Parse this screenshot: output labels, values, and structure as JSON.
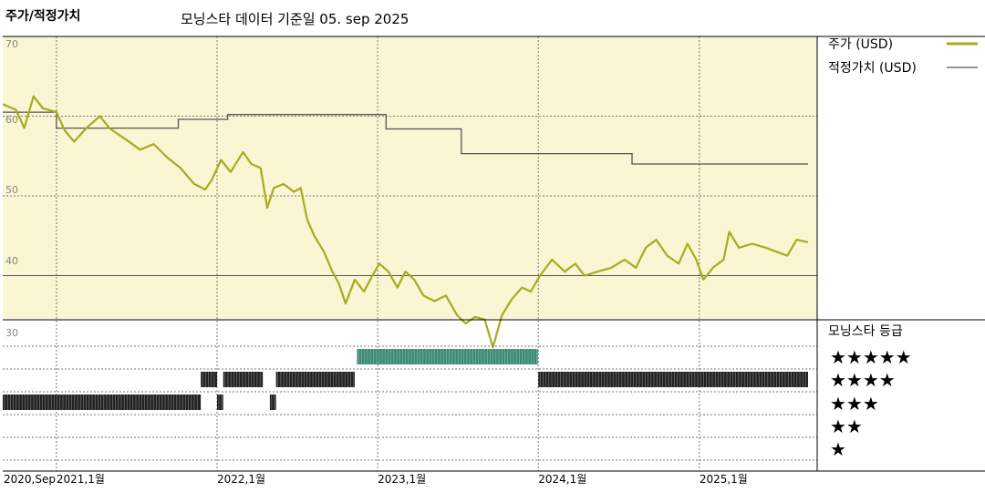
{
  "header": {
    "title": "주가/적정가치",
    "subtitle": "모닝스타 데이터 기준일 05. sep 2025"
  },
  "legend": {
    "price_label": "주가 (USD)",
    "fair_label": "적정가치 (USD)",
    "rating_title": "모닝스타 등급",
    "stars": [
      "★★★★★",
      "★★★★",
      "★★★",
      "★★",
      "★"
    ]
  },
  "colors": {
    "plot_bg": "#faf5d3",
    "price": "#a8ab1e",
    "fair": "#555555",
    "rating_5": "#3a8a74",
    "rating_other": "#222222",
    "grid": "#777777"
  },
  "chart_data": {
    "type": "line",
    "y_ticks": [
      "70",
      "60",
      "50",
      "40",
      "30"
    ],
    "ylim": [
      30,
      70
    ],
    "x_ticks": [
      "2020,Sep",
      "2021,1월",
      "2022,1월",
      "2023,1월",
      "2024,1월",
      "2025,1월"
    ],
    "x_range": [
      "2020-09-01",
      "2025-09-05"
    ],
    "series": [
      {
        "name": "주가 (USD)",
        "points": [
          [
            "2020-09-01",
            61.5
          ],
          [
            "2020-10-01",
            60.8
          ],
          [
            "2020-10-20",
            58.5
          ],
          [
            "2020-11-10",
            62.5
          ],
          [
            "2020-12-01",
            61.0
          ],
          [
            "2021-01-01",
            60.5
          ],
          [
            "2021-01-20",
            58.2
          ],
          [
            "2021-02-10",
            56.8
          ],
          [
            "2021-03-10",
            58.5
          ],
          [
            "2021-04-10",
            60.0
          ],
          [
            "2021-05-01",
            58.5
          ],
          [
            "2021-06-10",
            57.0
          ],
          [
            "2021-07-10",
            55.8
          ],
          [
            "2021-08-10",
            56.5
          ],
          [
            "2021-09-10",
            54.8
          ],
          [
            "2021-10-10",
            53.5
          ],
          [
            "2021-11-10",
            51.5
          ],
          [
            "2021-12-05",
            50.8
          ],
          [
            "2021-12-20",
            52.0
          ],
          [
            "2022-01-10",
            54.5
          ],
          [
            "2022-02-01",
            53.0
          ],
          [
            "2022-03-01",
            55.5
          ],
          [
            "2022-03-20",
            54.0
          ],
          [
            "2022-04-10",
            53.5
          ],
          [
            "2022-04-25",
            48.5
          ],
          [
            "2022-05-10",
            51.0
          ],
          [
            "2022-06-01",
            51.5
          ],
          [
            "2022-06-25",
            50.5
          ],
          [
            "2022-07-10",
            51.0
          ],
          [
            "2022-07-25",
            47.0
          ],
          [
            "2022-08-10",
            45.0
          ],
          [
            "2022-09-01",
            43.0
          ],
          [
            "2022-09-20",
            40.5
          ],
          [
            "2022-10-05",
            39.0
          ],
          [
            "2022-10-20",
            36.5
          ],
          [
            "2022-11-10",
            39.5
          ],
          [
            "2022-12-01",
            38.0
          ],
          [
            "2022-12-20",
            40.0
          ],
          [
            "2023-01-05",
            41.5
          ],
          [
            "2023-01-25",
            40.5
          ],
          [
            "2023-02-15",
            38.5
          ],
          [
            "2023-03-05",
            40.5
          ],
          [
            "2023-03-25",
            39.5
          ],
          [
            "2023-04-15",
            37.5
          ],
          [
            "2023-05-10",
            36.8
          ],
          [
            "2023-06-05",
            37.5
          ],
          [
            "2023-07-01",
            35.0
          ],
          [
            "2023-07-20",
            34.0
          ],
          [
            "2023-08-10",
            34.8
          ],
          [
            "2023-09-01",
            34.5
          ],
          [
            "2023-09-20",
            31.0
          ],
          [
            "2023-10-10",
            35.0
          ],
          [
            "2023-11-01",
            37.0
          ],
          [
            "2023-11-25",
            38.5
          ],
          [
            "2023-12-15",
            38.0
          ],
          [
            "2024-01-05",
            40.0
          ],
          [
            "2024-02-01",
            42.0
          ],
          [
            "2024-03-01",
            40.5
          ],
          [
            "2024-03-25",
            41.5
          ],
          [
            "2024-04-15",
            40.0
          ],
          [
            "2024-05-15",
            40.5
          ],
          [
            "2024-06-15",
            41.0
          ],
          [
            "2024-07-15",
            42.0
          ],
          [
            "2024-08-10",
            41.0
          ],
          [
            "2024-09-01",
            43.5
          ],
          [
            "2024-09-25",
            44.5
          ],
          [
            "2024-10-20",
            42.5
          ],
          [
            "2024-11-15",
            41.5
          ],
          [
            "2024-12-05",
            44.0
          ],
          [
            "2024-12-25",
            42.0
          ],
          [
            "2025-01-10",
            39.5
          ],
          [
            "2025-02-01",
            41.0
          ],
          [
            "2025-02-25",
            42.0
          ],
          [
            "2025-03-10",
            45.5
          ],
          [
            "2025-04-01",
            43.5
          ],
          [
            "2025-05-01",
            44.0
          ],
          [
            "2025-06-01",
            43.5
          ],
          [
            "2025-06-25",
            43.0
          ],
          [
            "2025-07-20",
            42.5
          ],
          [
            "2025-08-10",
            44.5
          ],
          [
            "2025-09-05",
            44.2
          ]
        ]
      },
      {
        "name": "적정가치 (USD)",
        "points": [
          [
            "2020-09-01",
            60.5
          ],
          [
            "2021-01-01",
            60.5
          ],
          [
            "2021-01-01",
            58.5
          ],
          [
            "2021-10-05",
            58.5
          ],
          [
            "2021-10-05",
            59.6
          ],
          [
            "2022-01-25",
            59.6
          ],
          [
            "2022-01-25",
            60.2
          ],
          [
            "2023-01-20",
            60.2
          ],
          [
            "2023-01-20",
            58.4
          ],
          [
            "2023-07-10",
            58.4
          ],
          [
            "2023-07-10",
            55.3
          ],
          [
            "2024-08-01",
            55.3
          ],
          [
            "2024-08-01",
            54.0
          ],
          [
            "2025-09-05",
            54.0
          ]
        ]
      }
    ],
    "rating_rows": [
      "5",
      "4",
      "3",
      "2",
      "1"
    ],
    "rating_segments": [
      {
        "stars": 3,
        "from": "2020-09-01",
        "to": "2021-11-25"
      },
      {
        "stars": 4,
        "from": "2021-11-25",
        "to": "2022-01-01"
      },
      {
        "stars": 3,
        "from": "2022-01-01",
        "to": "2022-01-15"
      },
      {
        "stars": 4,
        "from": "2022-01-15",
        "to": "2022-04-15"
      },
      {
        "stars": 3,
        "from": "2022-05-01",
        "to": "2022-05-15"
      },
      {
        "stars": 4,
        "from": "2022-05-15",
        "to": "2022-11-10"
      },
      {
        "stars": 5,
        "from": "2022-11-15",
        "to": "2023-12-31"
      },
      {
        "stars": 4,
        "from": "2024-01-01",
        "to": "2025-09-05"
      }
    ]
  }
}
